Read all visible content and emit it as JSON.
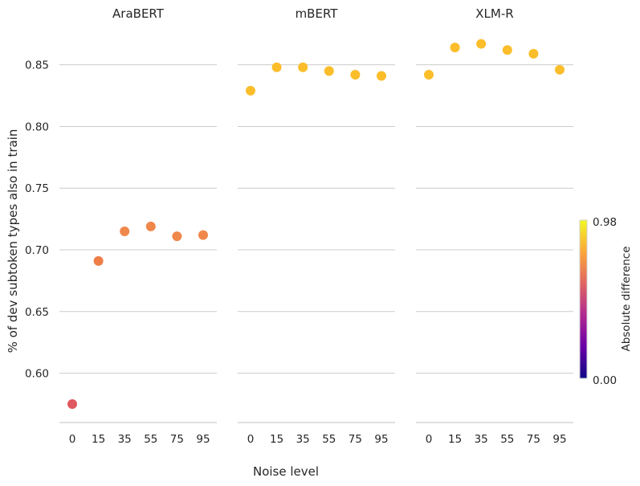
{
  "chart_data": {
    "type": "scatter",
    "xlabel": "Noise level",
    "ylabel": "% of dev subtoken types also in train",
    "x_categories": [
      "0",
      "15",
      "35",
      "55",
      "75",
      "95"
    ],
    "ylim": [
      0.56,
      0.883
    ],
    "yticks": [
      0.6,
      0.65,
      0.7,
      0.75,
      0.8,
      0.85
    ],
    "ytick_labels": [
      "0.60",
      "0.65",
      "0.70",
      "0.75",
      "0.80",
      "0.85"
    ],
    "grid": "horizontal",
    "shared_y": true,
    "panels": [
      {
        "title": "AraBERT",
        "values": [
          0.575,
          0.691,
          0.715,
          0.719,
          0.711,
          0.712
        ],
        "colors": [
          "#e0585f",
          "#ef7d48",
          "#f0874b",
          "#f0874b",
          "#f0874b",
          "#f0874b"
        ]
      },
      {
        "title": "mBERT",
        "values": [
          0.829,
          0.848,
          0.848,
          0.845,
          0.842,
          0.841
        ],
        "colors": [
          "#fbbd2a",
          "#fbbd2a",
          "#fbbd2a",
          "#fbbd2a",
          "#fbbd2a",
          "#fbbd2a"
        ]
      },
      {
        "title": "XLM-R",
        "values": [
          0.842,
          0.864,
          0.867,
          0.862,
          0.859,
          0.846
        ],
        "colors": [
          "#fbbd2a",
          "#fbbd2a",
          "#fbbd2a",
          "#fbbd2a",
          "#fbbd2a",
          "#fbbd2a"
        ]
      }
    ],
    "colorbar": {
      "label": "Absolute  difference",
      "min_label": "0.00",
      "max_label": "0.98",
      "colormap": "plasma",
      "stops": [
        "#0d0887",
        "#6a00a8",
        "#b12a90",
        "#e16462",
        "#fca636",
        "#f0f921"
      ]
    }
  }
}
